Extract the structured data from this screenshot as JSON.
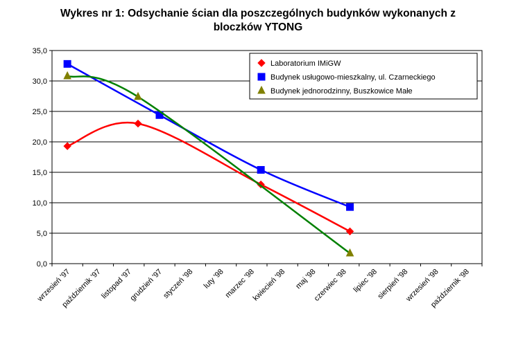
{
  "chart_data": {
    "type": "line",
    "title_line1": "Wykres nr 1: Odsychanie ścian dla poszczególnych budynków wykonanych z",
    "title_line2": "bloczków YTONG",
    "xlabel": "",
    "ylabel": "",
    "ylim": [
      0,
      35
    ],
    "yticks": [
      "0,0",
      "5,0",
      "10,0",
      "15,0",
      "20,0",
      "25,0",
      "30,0",
      "35,0"
    ],
    "ytick_values": [
      0,
      5,
      10,
      15,
      20,
      25,
      30,
      35
    ],
    "grid": true,
    "legend_position": "top-right",
    "categories": [
      "wrzesień '97",
      "październik '97",
      "listopad '97",
      "grudzień '97",
      "styczeń '98",
      "luty '98",
      "marzec '98",
      "kwiecień '98",
      "maj '98",
      "czerwiec '98",
      "lipiec '98",
      "sierpień '98",
      "wrzesień '98",
      "październik '98"
    ],
    "series": [
      {
        "name": "Laboratorium IMiGW",
        "color": "#ff0000",
        "marker": "diamond",
        "x": [
          0,
          2.3,
          6.3,
          9.2
        ],
        "values": [
          19.3,
          23.0,
          13.0,
          5.3
        ]
      },
      {
        "name": "Budynek usługowo-mieszkalny, ul. Czarneckiego",
        "color": "#0000ff",
        "marker": "square",
        "x": [
          0,
          3.0,
          6.3,
          9.2
        ],
        "values": [
          32.8,
          24.4,
          15.4,
          9.3
        ]
      },
      {
        "name": "Budynek jednorodzinny, Buszkowice Małe",
        "color": "#808000",
        "trend_color": "#008000",
        "marker": "triangle",
        "x": [
          0,
          2.3,
          9.2
        ],
        "values": [
          30.8,
          27.4,
          1.7
        ]
      }
    ]
  }
}
